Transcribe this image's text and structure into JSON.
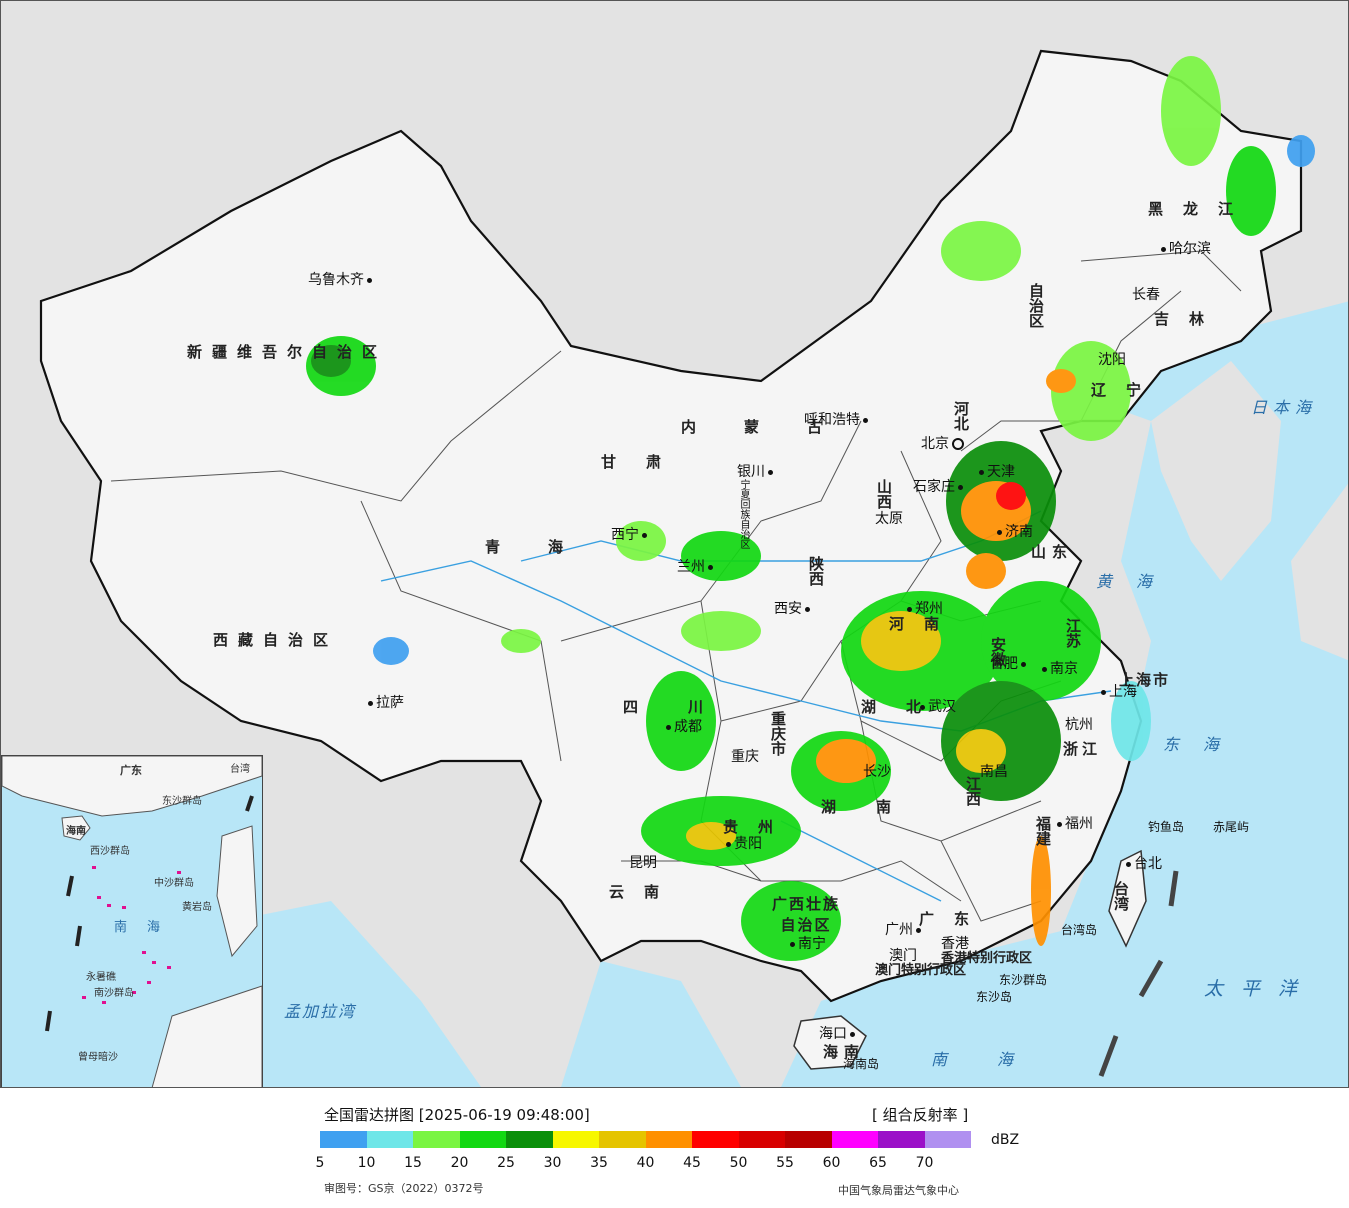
{
  "legend": {
    "title": "全国雷达拼图 [2025-06-19 09:48:00]",
    "product": "[ 组合反射率 ]",
    "unit": "dBZ",
    "review_number": "审图号：GS京（2022）0372号",
    "source": "中国气象局雷达气象中心",
    "colors": [
      "#3fa0f0",
      "#6ee6e8",
      "#7af542",
      "#12d812",
      "#0a8f0a",
      "#f7f700",
      "#e5c400",
      "#ff9000",
      "#ff0000",
      "#d80000",
      "#b80000",
      "#ff00ff",
      "#9b10c8",
      "#b090f0"
    ],
    "ticks": [
      "5",
      "10",
      "15",
      "20",
      "25",
      "30",
      "35",
      "40",
      "45",
      "50",
      "55",
      "60",
      "65",
      "70"
    ]
  },
  "cities": {
    "urumqi": "乌鲁木齐",
    "lhasa": "拉萨",
    "xining": "西宁",
    "lanzhou": "兰州",
    "yinchuan": "银川",
    "hohhot": "呼和浩特",
    "beijing": "北京",
    "tianjin": "天津",
    "shijiazhuang": "石家庄",
    "taiyuan": "太原",
    "jinan": "济南",
    "xian": "西安",
    "zhengzhou": "郑州",
    "chengdu": "成都",
    "chongqing": "重庆",
    "wuhan": "武汉",
    "hefei": "合肥",
    "nanjing": "南京",
    "shanghai": "上海",
    "hangzhou": "杭州",
    "changsha": "长沙",
    "nanchang": "南昌",
    "fuzhou": "福州",
    "guiyang": "贵阳",
    "kunming": "昆明",
    "nanning": "南宁",
    "guangzhou": "广州",
    "hongkong": "香港",
    "macau": "澳门",
    "haikou": "海口",
    "taipei": "台北",
    "shenyang": "沈阳",
    "changchun": "长春",
    "harbin": "哈尔滨"
  },
  "provinces": {
    "xinjiang": "新疆维吾尔自治区",
    "xizang": "西藏自治区",
    "qinghai": "青海",
    "gansu": "甘肃",
    "neimenggu_1": "内蒙古",
    "neimenggu_2": "自治区",
    "heilongjiang": "黑龙江",
    "jilin": "吉林",
    "liaoning": "辽宁",
    "hebei": "河北",
    "shanxi": "山西",
    "shandong": "山东",
    "shaanxi": "陕西",
    "henan": "河南",
    "jiangsu": "江苏",
    "anhui": "安徽",
    "sichuan": "四川",
    "hubei": "湖北",
    "hunan": "湖南",
    "jiangxi": "江西",
    "zhejiang": "浙江",
    "fujian": "福建",
    "guizhou": "贵州",
    "yunnan": "云南",
    "guangxi": "广西壮族自治区",
    "guangdong": "广东",
    "hainan": "海南",
    "hainan_island": "海南岛",
    "taiwan": "台湾",
    "taiwan_island": "台湾岛",
    "shanghai_city": "上海市",
    "chongqing_city": "重庆市",
    "ningxia": "宁夏回族自治区",
    "hk_sar": "香港特别行政区",
    "macau_sar": "澳门特别行政区"
  },
  "seas": {
    "japan_sea": "日本海",
    "yellow_sea": "黄海",
    "east_sea": "东海",
    "south_sea": "南海",
    "pacific": "太平洋",
    "bengal": "孟加拉湾"
  },
  "islands": {
    "diaoyu": "钓鱼岛",
    "chiwei": "赤尾屿",
    "dongsha_islands": "东沙群岛",
    "dongsha": "东沙岛"
  },
  "inset": {
    "south_sea": "南海",
    "hainan": "海南",
    "guangdong": "广东",
    "taiwan": "台湾",
    "dongsha": "东沙群岛",
    "xisha": "西沙群岛",
    "zhongsha": "中沙群岛",
    "nansha": "南沙群岛",
    "yongshu": "永暑礁",
    "zengmu": "曾母暗沙",
    "huangyan": "黄岩岛"
  }
}
